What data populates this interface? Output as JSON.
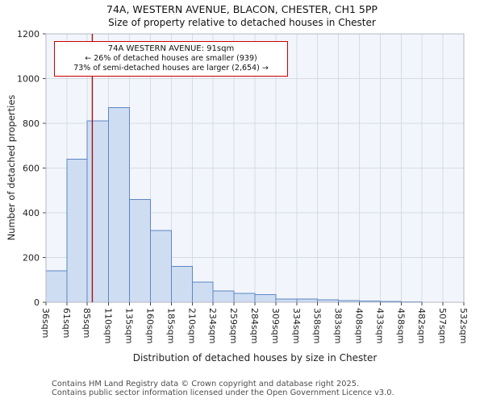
{
  "chart_data": {
    "type": "bar",
    "title": "74A, WESTERN AVENUE, BLACON, CHESTER, CH1 5PP",
    "subtitle": "Size of property relative to detached houses in Chester",
    "xlabel": "Distribution of detached houses by size in Chester",
    "ylabel": "Number of detached properties",
    "bin_edges_sqm": [
      36,
      61,
      85,
      110,
      135,
      160,
      185,
      210,
      234,
      259,
      284,
      309,
      334,
      358,
      383,
      408,
      433,
      458,
      482,
      507,
      532
    ],
    "tick_labels": [
      "36sqm",
      "61sqm",
      "85sqm",
      "110sqm",
      "135sqm",
      "160sqm",
      "185sqm",
      "210sqm",
      "234sqm",
      "259sqm",
      "284sqm",
      "309sqm",
      "334sqm",
      "358sqm",
      "383sqm",
      "408sqm",
      "433sqm",
      "458sqm",
      "482sqm",
      "507sqm",
      "532sqm"
    ],
    "values": [
      140,
      640,
      810,
      870,
      460,
      320,
      160,
      90,
      50,
      40,
      35,
      15,
      15,
      10,
      8,
      5,
      3,
      2,
      0,
      0
    ],
    "ylim": [
      0,
      1200
    ],
    "ytick_step": 200,
    "ytick_labels": [
      "0",
      "200",
      "400",
      "600",
      "800",
      "1000",
      "1200"
    ],
    "marker_value_sqm": 91,
    "grid": true,
    "legend": "none",
    "colors": {
      "bar_fill": "#cfddf2",
      "bar_edge": "#5b88c4",
      "marker_line": "#a51414",
      "grid": "#d6dbe4",
      "plot_bg": "#f2f5fb",
      "spine": "#b3b8c2",
      "annotation_border": "#cc0000"
    }
  },
  "annotation": {
    "line1": "74A WESTERN AVENUE: 91sqm",
    "line2": "← 26% of detached houses are smaller (939)",
    "line3": "73% of semi-detached houses are larger (2,654) →"
  },
  "footer": {
    "line1": "Contains HM Land Registry data © Crown copyright and database right 2025.",
    "line2": "Contains public sector information licensed under the Open Government Licence v3.0."
  }
}
